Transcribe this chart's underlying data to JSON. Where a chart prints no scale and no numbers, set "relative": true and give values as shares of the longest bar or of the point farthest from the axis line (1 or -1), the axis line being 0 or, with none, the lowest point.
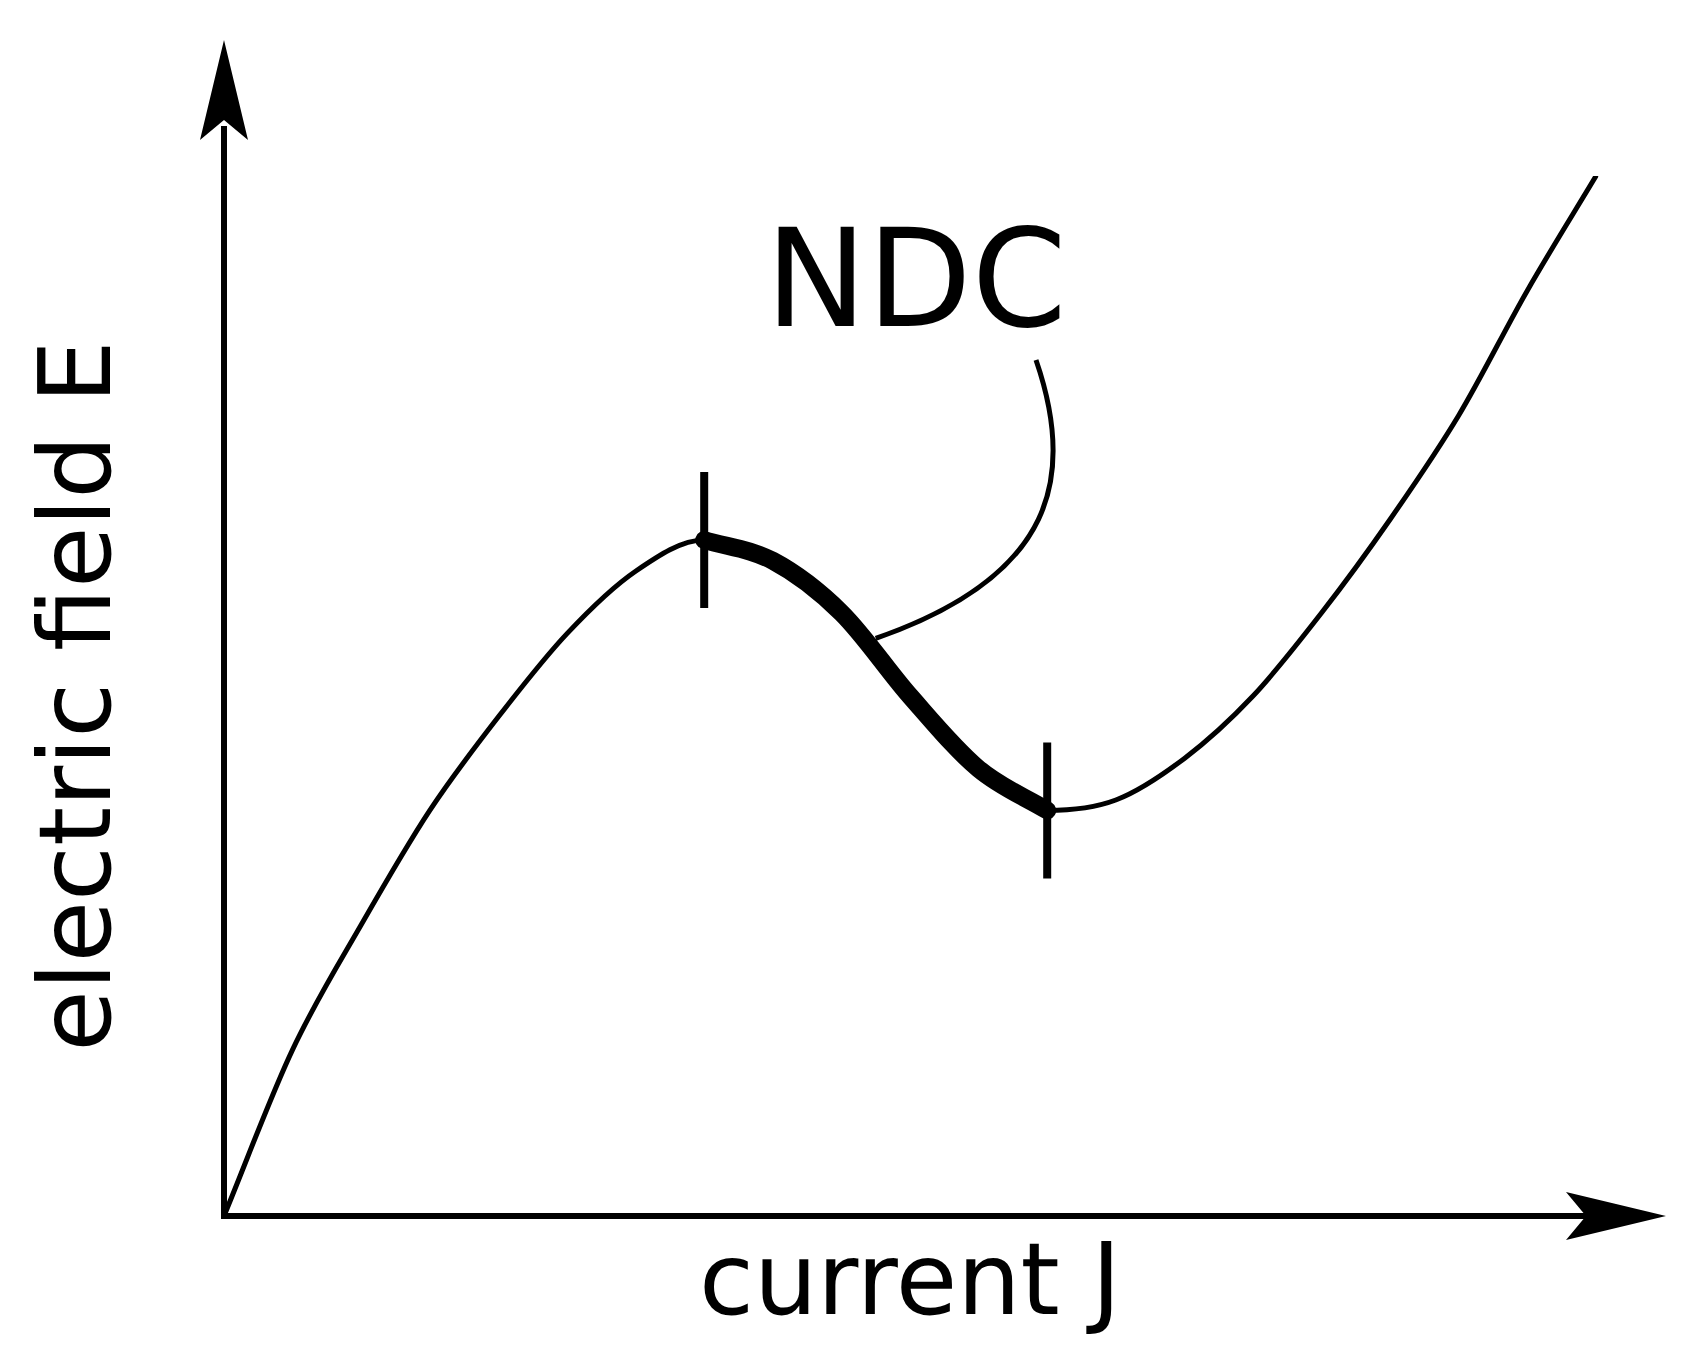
{
  "chart_data": {
    "type": "line",
    "relative": true,
    "xlabel": "current J",
    "ylabel": "electric field E",
    "categories": [
      null,
      null,
      null,
      null,
      null,
      null,
      null,
      null,
      null,
      null,
      null,
      null,
      null,
      null,
      null,
      null,
      null,
      null,
      null,
      null,
      null
    ],
    "series": [
      {
        "color": "#000000",
        "values": [
          0,
          0.16,
          0.28,
          0.39,
          0.48,
          0.56,
          0.62,
          0.65,
          0.63,
          0.58,
          0.5,
          0.43,
          0.39,
          0.4,
          0.44,
          0.5,
          0.58,
          0.67,
          0.77,
          0.89,
          1
        ]
      },
      {
        "color": "#000000",
        "values": [
          null,
          null,
          null,
          null,
          null,
          null,
          null,
          0.65,
          0.63,
          0.58,
          0.5,
          0.43,
          0.39,
          null,
          null,
          null,
          null,
          null,
          null,
          null,
          null
        ]
      }
    ],
    "annotations": [
      "NDC"
    ],
    "grid": false,
    "legend": false
  }
}
